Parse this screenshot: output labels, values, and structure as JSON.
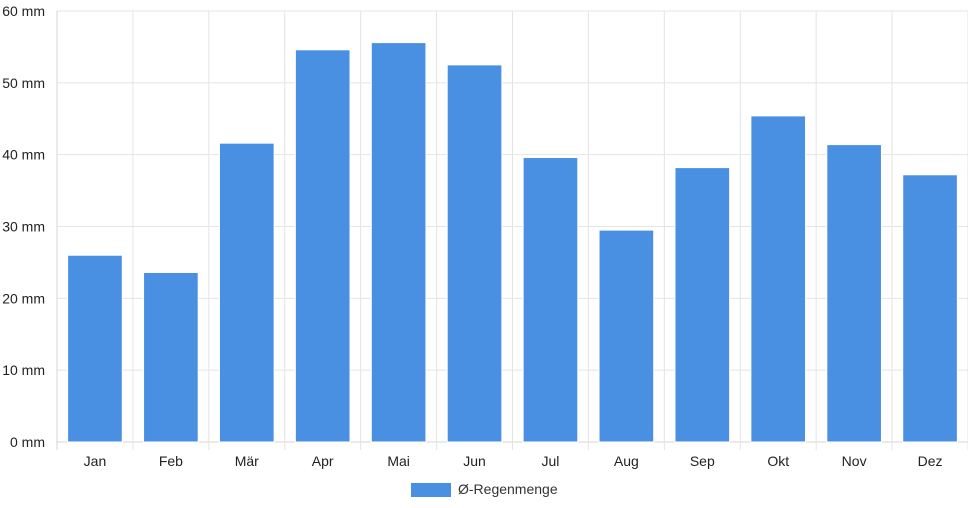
{
  "chart_data": {
    "type": "bar",
    "categories": [
      "Jan",
      "Feb",
      "Mär",
      "Apr",
      "Mai",
      "Jun",
      "Jul",
      "Aug",
      "Sep",
      "Okt",
      "Nov",
      "Dez"
    ],
    "series": [
      {
        "name": "Ø-Regenmenge",
        "color": "#4a90e2",
        "values": [
          26,
          23.6,
          41.6,
          54.6,
          55.6,
          52.5,
          39.6,
          29.5,
          38.2,
          45.4,
          41.4,
          37.2
        ]
      }
    ],
    "title": "",
    "xlabel": "",
    "ylabel": "",
    "ylim": [
      0,
      60
    ],
    "y_ticks": [
      0,
      10,
      20,
      30,
      40,
      50,
      60
    ],
    "y_unit": "mm",
    "grid": true,
    "legend_position": "bottom-center"
  }
}
